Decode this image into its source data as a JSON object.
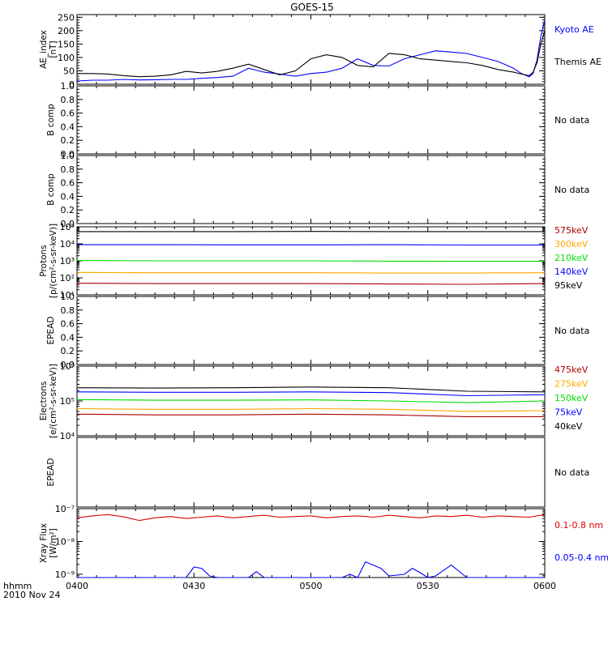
{
  "title": "GOES-15",
  "footer": {
    "time_label": "hhmm",
    "date_label": "2010 Nov 24"
  },
  "x_ticks": [
    "0400",
    "0430",
    "0500",
    "0530",
    "0600"
  ],
  "colors": {
    "black": "#000000",
    "blue": "#0000ff",
    "red": "#dd0000",
    "darkred": "#aa0000",
    "orange": "#ffa500",
    "green": "#00dd00",
    "axis": "#000000"
  },
  "chart_data": [
    {
      "type": "line",
      "id": "ae",
      "ylabel": [
        "AE_index",
        "[nT]"
      ],
      "ylim": [
        0,
        260
      ],
      "scale": "linear",
      "yticks": [
        "0",
        "50",
        "100",
        "150",
        "200",
        "250"
      ],
      "ytick_values": [
        0,
        50,
        100,
        150,
        200,
        250
      ],
      "minor_step": 10,
      "xlim": [
        0,
        120
      ],
      "series": [
        {
          "name": "Kyoto AE",
          "color": "#0000ff",
          "x": [
            0,
            4,
            8,
            12,
            16,
            20,
            24,
            28,
            32,
            36,
            40,
            44,
            48,
            52,
            56,
            60,
            64,
            68,
            72,
            76,
            80,
            84,
            88,
            92,
            96,
            100,
            104,
            108,
            112,
            114,
            116,
            117,
            118,
            119,
            120
          ],
          "values": [
            12,
            15,
            15,
            18,
            16,
            17,
            18,
            18,
            22,
            25,
            30,
            60,
            45,
            38,
            30,
            40,
            45,
            60,
            95,
            70,
            68,
            95,
            110,
            125,
            120,
            115,
            100,
            85,
            60,
            40,
            28,
            40,
            90,
            180,
            240
          ]
        },
        {
          "name": "Themis AE",
          "color": "#000000",
          "x": [
            0,
            4,
            8,
            12,
            16,
            20,
            24,
            28,
            32,
            36,
            40,
            44,
            48,
            52,
            56,
            60,
            64,
            68,
            72,
            76,
            80,
            84,
            88,
            92,
            96,
            100,
            104,
            108,
            112,
            114,
            116,
            117,
            118,
            119,
            120
          ],
          "values": [
            40,
            40,
            38,
            32,
            28,
            30,
            35,
            48,
            42,
            48,
            60,
            75,
            55,
            35,
            50,
            95,
            110,
            100,
            70,
            65,
            115,
            110,
            95,
            90,
            85,
            80,
            70,
            55,
            45,
            38,
            32,
            45,
            80,
            150,
            200
          ]
        }
      ]
    },
    {
      "type": "line",
      "id": "b1",
      "ylabel": [
        "B comp"
      ],
      "ylim": [
        0,
        1
      ],
      "scale": "linear",
      "yticks": [
        "0.0",
        "0.2",
        "0.4",
        "0.6",
        "0.8",
        "1.0"
      ],
      "ytick_values": [
        0,
        0.2,
        0.4,
        0.6,
        0.8,
        1.0
      ],
      "minor_step": 0.05,
      "xlim": [
        0,
        120
      ],
      "nodata": "No data",
      "series": []
    },
    {
      "type": "line",
      "id": "b2",
      "ylabel": [
        "B comp"
      ],
      "ylim": [
        0,
        1
      ],
      "scale": "linear",
      "yticks": [
        "0.0",
        "0.2",
        "0.4",
        "0.6",
        "0.8",
        "1.0"
      ],
      "ytick_values": [
        0,
        0.2,
        0.4,
        0.6,
        0.8,
        1.0
      ],
      "minor_step": 0.05,
      "xlim": [
        0,
        120
      ],
      "nodata": "No data",
      "series": []
    },
    {
      "type": "line",
      "id": "protons",
      "ylabel": [
        "Protons",
        "[p/(cm²-s-sr-keV)]"
      ],
      "ylim": [
        1,
        5
      ],
      "scale": "log",
      "yticks": [
        "10¹",
        "10²",
        "10³",
        "10⁴",
        "10⁵"
      ],
      "ytick_values": [
        1,
        2,
        3,
        4,
        5
      ],
      "xlim": [
        0,
        120
      ],
      "series": [
        {
          "name": "575keV",
          "color": "#aa0000",
          "x": [
            0,
            20,
            40,
            60,
            80,
            100,
            120
          ],
          "values": [
            1.68,
            1.66,
            1.66,
            1.66,
            1.64,
            1.62,
            1.66
          ]
        },
        {
          "name": "300keV",
          "color": "#ffa500",
          "x": [
            0,
            20,
            40,
            60,
            80,
            100,
            120
          ],
          "values": [
            2.32,
            2.3,
            2.3,
            2.3,
            2.28,
            2.28,
            2.3
          ]
        },
        {
          "name": "210keV",
          "color": "#00dd00",
          "x": [
            0,
            20,
            40,
            60,
            80,
            100,
            120
          ],
          "values": [
            3.02,
            3.0,
            3.0,
            3.0,
            2.98,
            2.97,
            2.97
          ]
        },
        {
          "name": "140keV",
          "color": "#0000ff",
          "x": [
            0,
            20,
            40,
            60,
            80,
            100,
            120
          ],
          "values": [
            3.95,
            3.95,
            3.94,
            3.94,
            3.95,
            3.93,
            3.93
          ]
        },
        {
          "name": "95keV",
          "color": "#000000",
          "x": [
            0,
            20,
            40,
            60,
            80,
            100,
            120
          ],
          "values": [
            4.72,
            4.72,
            4.72,
            4.73,
            4.72,
            4.72,
            4.72
          ]
        }
      ]
    },
    {
      "type": "line",
      "id": "epead1",
      "ylabel": [
        "EPEAD"
      ],
      "ylim": [
        0,
        1
      ],
      "scale": "linear",
      "yticks": [
        "0.0",
        "0.2",
        "0.4",
        "0.6",
        "0.8",
        "1.0"
      ],
      "ytick_values": [
        0,
        0.2,
        0.4,
        0.6,
        0.8,
        1.0
      ],
      "minor_step": 0.05,
      "xlim": [
        0,
        120
      ],
      "nodata": "No data",
      "series": []
    },
    {
      "type": "line",
      "id": "electrons",
      "ylabel": [
        "Electrons",
        "[e/(cm²-s-sr-keV)]"
      ],
      "ylim": [
        4,
        6
      ],
      "scale": "log",
      "yticks": [
        "10⁴",
        "10⁵",
        "10⁶"
      ],
      "ytick_values": [
        4,
        5,
        6
      ],
      "xlim": [
        0,
        120
      ],
      "series": [
        {
          "name": "475keV",
          "color": "#aa0000",
          "x": [
            0,
            20,
            40,
            60,
            80,
            100,
            120
          ],
          "values": [
            4.62,
            4.6,
            4.6,
            4.62,
            4.6,
            4.55,
            4.55
          ]
        },
        {
          "name": "275keV",
          "color": "#ffa500",
          "x": [
            0,
            20,
            40,
            60,
            80,
            100,
            120
          ],
          "values": [
            4.78,
            4.76,
            4.76,
            4.78,
            4.76,
            4.7,
            4.72
          ]
        },
        {
          "name": "150keV",
          "color": "#00dd00",
          "x": [
            0,
            20,
            40,
            60,
            80,
            100,
            120
          ],
          "values": [
            5.04,
            5.02,
            5.02,
            5.03,
            5.0,
            4.95,
            5.0
          ]
        },
        {
          "name": "75keV",
          "color": "#0000ff",
          "x": [
            0,
            20,
            40,
            60,
            80,
            100,
            120
          ],
          "values": [
            5.26,
            5.25,
            5.25,
            5.26,
            5.24,
            5.15,
            5.18
          ]
        },
        {
          "name": "40keV",
          "color": "#000000",
          "x": [
            0,
            20,
            40,
            60,
            80,
            100,
            120
          ],
          "values": [
            5.38,
            5.37,
            5.38,
            5.4,
            5.38,
            5.28,
            5.26
          ]
        }
      ]
    },
    {
      "type": "line",
      "id": "epead2",
      "ylabel": [
        "EPEAD"
      ],
      "ylim": [
        0,
        1
      ],
      "scale": "linear",
      "yticks": [],
      "ytick_values": [],
      "minor_step": 0,
      "xlim": [
        0,
        120
      ],
      "nodata": "No data",
      "series": []
    },
    {
      "type": "line",
      "id": "xray",
      "ylabel": [
        "Xray Flux",
        "[W/m²]"
      ],
      "ylim": [
        -9.1,
        -7
      ],
      "scale": "log",
      "yticks": [
        "10⁻⁷",
        "10⁻⁸",
        "10⁻⁹"
      ],
      "ytick_values": [
        -7,
        -8,
        -9
      ],
      "xlim": [
        0,
        120
      ],
      "series": [
        {
          "name": "0.1-0.8 nm",
          "color": "#dd0000",
          "x": [
            0,
            4,
            8,
            12,
            16,
            20,
            24,
            28,
            32,
            36,
            40,
            44,
            48,
            52,
            56,
            60,
            64,
            68,
            72,
            76,
            80,
            84,
            88,
            92,
            96,
            100,
            104,
            108,
            112,
            116,
            120
          ],
          "values": [
            -7.28,
            -7.22,
            -7.18,
            -7.25,
            -7.36,
            -7.28,
            -7.24,
            -7.3,
            -7.26,
            -7.22,
            -7.28,
            -7.24,
            -7.2,
            -7.26,
            -7.24,
            -7.22,
            -7.28,
            -7.24,
            -7.22,
            -7.26,
            -7.2,
            -7.24,
            -7.28,
            -7.22,
            -7.24,
            -7.2,
            -7.26,
            -7.22,
            -7.24,
            -7.26,
            -7.18
          ]
        },
        {
          "name": "0.05-0.4 nm",
          "color": "#0000ff",
          "x": [
            0,
            4,
            8,
            12,
            16,
            20,
            24,
            28,
            30,
            32,
            34,
            36,
            40,
            44,
            46,
            48,
            52,
            56,
            60,
            64,
            68,
            70,
            72,
            74,
            76,
            78,
            80,
            84,
            86,
            88,
            90,
            92,
            96,
            100,
            104,
            108,
            112,
            116,
            120
          ],
          "values": [
            -9.1,
            -9.1,
            -9.1,
            -9.1,
            -9.1,
            -9.1,
            -9.1,
            -9.1,
            -8.78,
            -8.82,
            -9.05,
            -9.1,
            -9.1,
            -9.1,
            -8.92,
            -9.1,
            -9.1,
            -9.1,
            -9.1,
            -9.1,
            -9.1,
            -9.0,
            -9.1,
            -8.62,
            -8.72,
            -8.82,
            -9.05,
            -9.0,
            -8.82,
            -8.95,
            -9.1,
            -9.05,
            -8.72,
            -9.1,
            -9.1,
            -9.1,
            -9.1,
            -9.1,
            -9.1
          ]
        }
      ]
    }
  ]
}
